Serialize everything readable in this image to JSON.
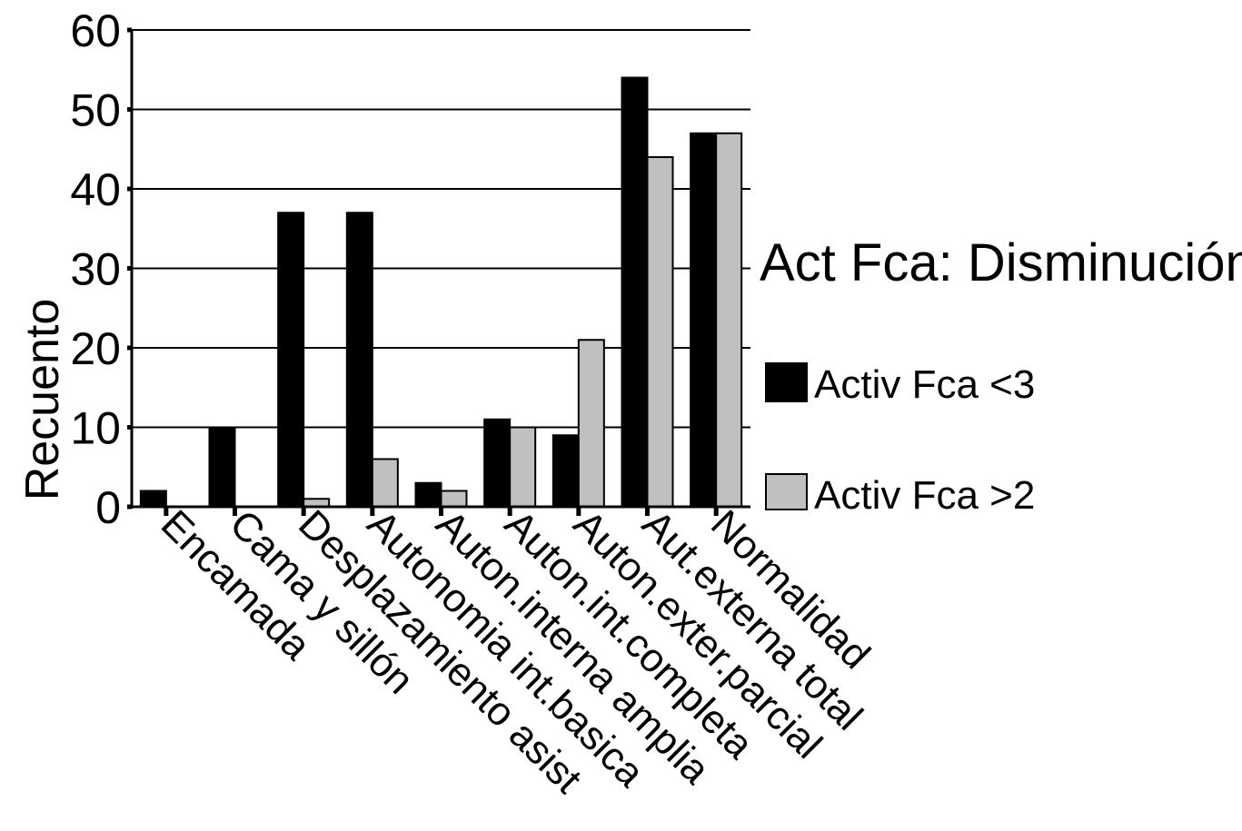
{
  "chart_data": {
    "type": "bar",
    "title": "",
    "ylabel": "Recuento",
    "xlabel": "",
    "ylim": [
      0,
      60
    ],
    "yticks": [
      0,
      10,
      20,
      30,
      40,
      50,
      60
    ],
    "grid": true,
    "legend_position": "right",
    "legend_title": "Act Fca: Disminución",
    "categories": [
      "Encamada",
      "Cama y sillón",
      "Desplazamiento asist",
      "Autonomia int.basica",
      "Auton.interna amplia",
      "Auton.int.completa",
      "Auton.exter.parcial",
      "Aut.externa total",
      "Normalidad"
    ],
    "series": [
      {
        "name": "Activ Fca <3",
        "color": "#000000",
        "values": [
          2,
          10,
          37,
          37,
          3,
          11,
          9,
          54,
          47
        ]
      },
      {
        "name": "Activ Fca >2",
        "color": "#c0c0c0",
        "values": [
          0,
          0,
          1,
          6,
          2,
          10,
          21,
          44,
          47
        ]
      }
    ]
  }
}
